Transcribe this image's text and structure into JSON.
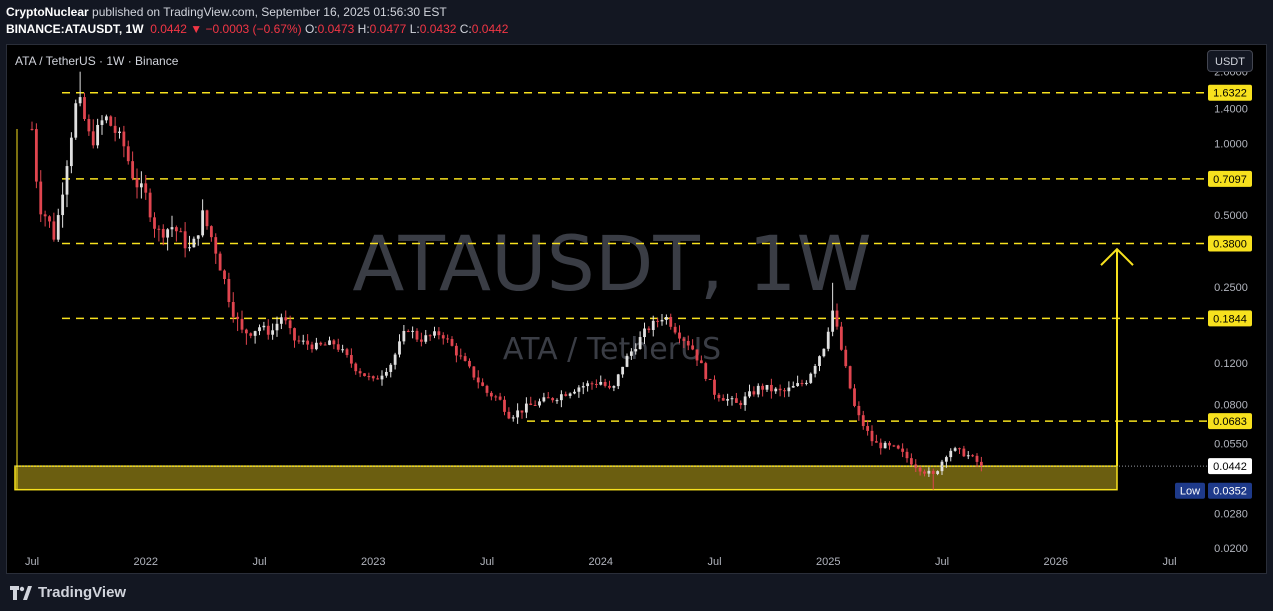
{
  "header": {
    "author": "CryptoNuclear",
    "published_text": "published on TradingView.com, September 16, 2025 01:56:30 EST",
    "symbol_line": "BINANCE:ATAUSDT, 1W",
    "last": "0.0442",
    "change": "−0.0003 (−0.67%)",
    "o_label": "O:",
    "o_val": "0.0473",
    "h_label": "H:",
    "h_val": "0.0477",
    "l_label": "L:",
    "l_val": "0.0432",
    "c_label": "C:",
    "c_val": "0.0442"
  },
  "chart_title": "ATA / TetherUS · 1W · Binance",
  "currency_button": "USDT",
  "watermark": {
    "big": "ATAUSDT, 1W",
    "small": "ATA / TetherUS"
  },
  "footer": {
    "brand": "TradingView"
  },
  "colors": {
    "up": "#e0e0e0",
    "down": "#e0454f",
    "level": "#f7e11e",
    "zone_fill": "#6b5e10",
    "axis_text": "#b2b5be"
  },
  "chart_data": {
    "type": "candlestick",
    "scale": "log",
    "ylim": [
      0.017,
      2.35
    ],
    "y_ticks": [
      {
        "v": 2.0,
        "label": "2.0000"
      },
      {
        "v": 1.4,
        "label": "1.4000"
      },
      {
        "v": 1.0,
        "label": "1.0000"
      },
      {
        "v": 0.5,
        "label": "0.5000"
      },
      {
        "v": 0.25,
        "label": "0.2500"
      },
      {
        "v": 0.12,
        "label": "0.1200"
      },
      {
        "v": 0.08,
        "label": "0.0800"
      },
      {
        "v": 0.055,
        "label": "0.0550"
      },
      {
        "v": 0.028,
        "label": "0.0280"
      },
      {
        "v": 0.02,
        "label": "0.0200"
      }
    ],
    "x_ticks": [
      {
        "t": 0.0,
        "label": "Jul"
      },
      {
        "t": 0.5,
        "label": "2022"
      },
      {
        "t": 1.0,
        "label": "Jul"
      },
      {
        "t": 1.5,
        "label": "2023"
      },
      {
        "t": 2.0,
        "label": "Jul"
      },
      {
        "t": 2.5,
        "label": "2024"
      },
      {
        "t": 3.0,
        "label": "Jul"
      },
      {
        "t": 3.5,
        "label": "2025"
      },
      {
        "t": 4.0,
        "label": "Jul"
      },
      {
        "t": 4.5,
        "label": "2026"
      },
      {
        "t": 5.0,
        "label": "Jul"
      }
    ],
    "levels": [
      {
        "value": 1.6322,
        "label": "1.6322"
      },
      {
        "value": 0.7097,
        "label": "0.7097"
      },
      {
        "value": 0.38,
        "label": "0.3800"
      },
      {
        "value": 0.1844,
        "label": "0.1844"
      },
      {
        "value": 0.0683,
        "label": "0.0683"
      }
    ],
    "current": {
      "value": 0.0442,
      "label": "0.0442"
    },
    "low": {
      "value": 0.0352,
      "label": "0.0352",
      "tag": "Low"
    },
    "support_zone": [
      0.0352,
      0.0442
    ],
    "target_arrow_to": 0.36,
    "anchors": [
      [
        0.0,
        1.15
      ],
      [
        0.03,
        0.55
      ],
      [
        0.07,
        0.48
      ],
      [
        0.1,
        0.4
      ],
      [
        0.14,
        0.7
      ],
      [
        0.2,
        1.6
      ],
      [
        0.26,
        1.0
      ],
      [
        0.32,
        1.3
      ],
      [
        0.4,
        1.0
      ],
      [
        0.45,
        0.7
      ],
      [
        0.5,
        0.6
      ],
      [
        0.55,
        0.42
      ],
      [
        0.62,
        0.45
      ],
      [
        0.7,
        0.35
      ],
      [
        0.75,
        0.5
      ],
      [
        0.8,
        0.38
      ],
      [
        0.87,
        0.22
      ],
      [
        0.92,
        0.16
      ],
      [
        1.0,
        0.17
      ],
      [
        1.05,
        0.16
      ],
      [
        1.1,
        0.19
      ],
      [
        1.15,
        0.15
      ],
      [
        1.25,
        0.14
      ],
      [
        1.33,
        0.145
      ],
      [
        1.42,
        0.115
      ],
      [
        1.5,
        0.1
      ],
      [
        1.58,
        0.12
      ],
      [
        1.65,
        0.17
      ],
      [
        1.7,
        0.15
      ],
      [
        1.8,
        0.16
      ],
      [
        1.9,
        0.12
      ],
      [
        2.0,
        0.09
      ],
      [
        2.05,
        0.085
      ],
      [
        2.1,
        0.072
      ],
      [
        2.2,
        0.08
      ],
      [
        2.3,
        0.086
      ],
      [
        2.4,
        0.095
      ],
      [
        2.5,
        0.1
      ],
      [
        2.55,
        0.09
      ],
      [
        2.6,
        0.12
      ],
      [
        2.7,
        0.165
      ],
      [
        2.78,
        0.19
      ],
      [
        2.84,
        0.16
      ],
      [
        2.9,
        0.14
      ],
      [
        3.0,
        0.09
      ],
      [
        3.1,
        0.08
      ],
      [
        3.2,
        0.095
      ],
      [
        3.3,
        0.09
      ],
      [
        3.4,
        0.1
      ],
      [
        3.48,
        0.14
      ],
      [
        3.52,
        0.2
      ],
      [
        3.57,
        0.12
      ],
      [
        3.62,
        0.075
      ],
      [
        3.7,
        0.055
      ],
      [
        3.8,
        0.052
      ],
      [
        3.88,
        0.045
      ],
      [
        3.96,
        0.04
      ],
      [
        4.03,
        0.052
      ],
      [
        4.1,
        0.05
      ],
      [
        4.18,
        0.0442
      ]
    ]
  }
}
